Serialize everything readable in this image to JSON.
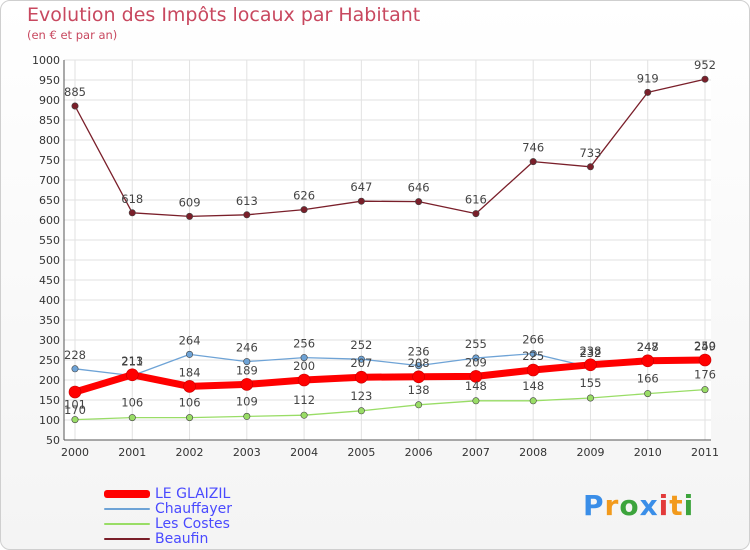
{
  "chart_data": {
    "type": "line",
    "title": "Evolution des Impôts locaux par Habitant",
    "subtitle": "(en € et par an)",
    "xlabel": "",
    "ylabel": "",
    "ylim": [
      50,
      1000
    ],
    "yticks": [
      50,
      100,
      150,
      200,
      250,
      300,
      350,
      400,
      450,
      500,
      550,
      600,
      650,
      700,
      750,
      800,
      850,
      900,
      950,
      1000
    ],
    "categories": [
      "2000",
      "2001",
      "2002",
      "2003",
      "2004",
      "2005",
      "2006",
      "2007",
      "2008",
      "2009",
      "2010",
      "2011"
    ],
    "legend_position": "bottom-left",
    "series": [
      {
        "name": "LE GLAIZIL",
        "color": "#ff0000",
        "values": [
          170,
          213,
          184,
          189,
          200,
          207,
          208,
          209,
          225,
          238,
          248,
          250
        ]
      },
      {
        "name": "Chauffayer",
        "color": "#6ea3d6",
        "values": [
          228,
          211,
          264,
          246,
          256,
          252,
          236,
          255,
          266,
          232,
          247,
          249
        ]
      },
      {
        "name": "Les Costes",
        "color": "#99dd66",
        "values": [
          101,
          106,
          106,
          109,
          112,
          123,
          138,
          148,
          148,
          155,
          166,
          176
        ]
      },
      {
        "name": "Beaufin",
        "color": "#7a1f2a",
        "values": [
          885,
          618,
          609,
          613,
          626,
          647,
          646,
          616,
          746,
          733,
          919,
          952
        ]
      }
    ]
  },
  "logo": {
    "letters": [
      "P",
      "r",
      "o",
      "x",
      "i",
      "t",
      "i"
    ],
    "colors": [
      "#3a8ee8",
      "#f29a1c",
      "#3ca43c",
      "#3a8ee8",
      "#e23a3a",
      "#f29a1c",
      "#3ca43c"
    ]
  }
}
